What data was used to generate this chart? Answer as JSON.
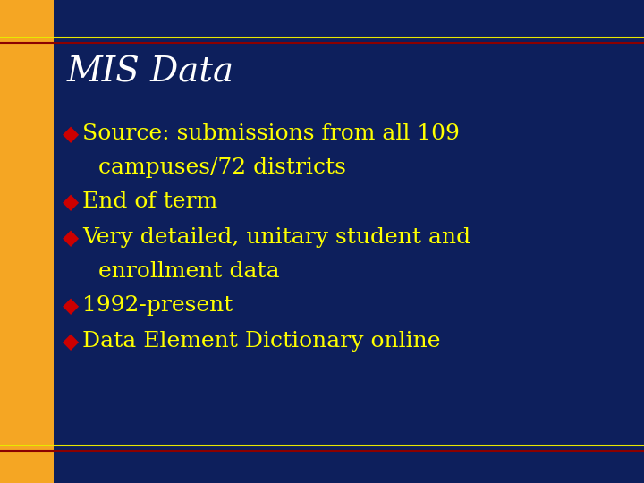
{
  "background_color": "#0d1f5c",
  "outer_top_bar_color": "#0d1f5c",
  "orange_bar_color": "#f5a623",
  "yellow_line_color": "#e8e800",
  "red_line_color": "#8b0000",
  "title": "MIS Data",
  "title_color": "#ffffff",
  "title_fontsize": 28,
  "bullet_marker_color": "#cc0000",
  "bullet_text_color": "#ffff00",
  "bullet_fontsize": 18,
  "bullets": [
    [
      "Source: submissions from all 109",
      "campuses/72 districts"
    ],
    [
      "End of term"
    ],
    [
      "Very detailed, unitary student and",
      "enrollment data"
    ],
    [
      "1992-present"
    ],
    [
      "Data Element Dictionary online"
    ]
  ],
  "fig_width": 7.2,
  "fig_height": 5.4,
  "dpi": 100
}
